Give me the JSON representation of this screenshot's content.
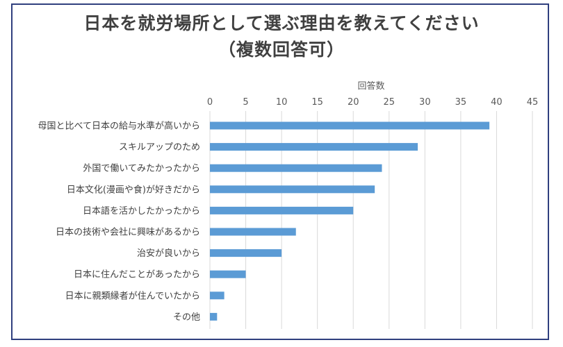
{
  "chart_data": {
    "type": "bar",
    "orientation": "horizontal",
    "title_line1": "日本を就労場所として選ぶ理由を教えてください",
    "title_line2": "（複数回答可）",
    "xlabel": "回答数",
    "xlim": [
      0,
      45
    ],
    "xticks": [
      0,
      5,
      10,
      15,
      20,
      25,
      30,
      35,
      40,
      45
    ],
    "grid": true,
    "axis_position": "top",
    "bar_color": "#5b9bd5",
    "categories": [
      "母国と比べて日本の給与水準が高いから",
      "スキルアップのため",
      "外国で働いてみたかったから",
      "日本文化(漫画や食)が好きだから",
      "日本語を活かしたかったから",
      "日本の技術や会社に興味があるから",
      "治安が良いから",
      "日本に住んだことがあったから",
      "日本に親類縁者が住んでいたから",
      "その他"
    ],
    "values": [
      39,
      29,
      24,
      23,
      20,
      12,
      10,
      5,
      2,
      1
    ]
  }
}
